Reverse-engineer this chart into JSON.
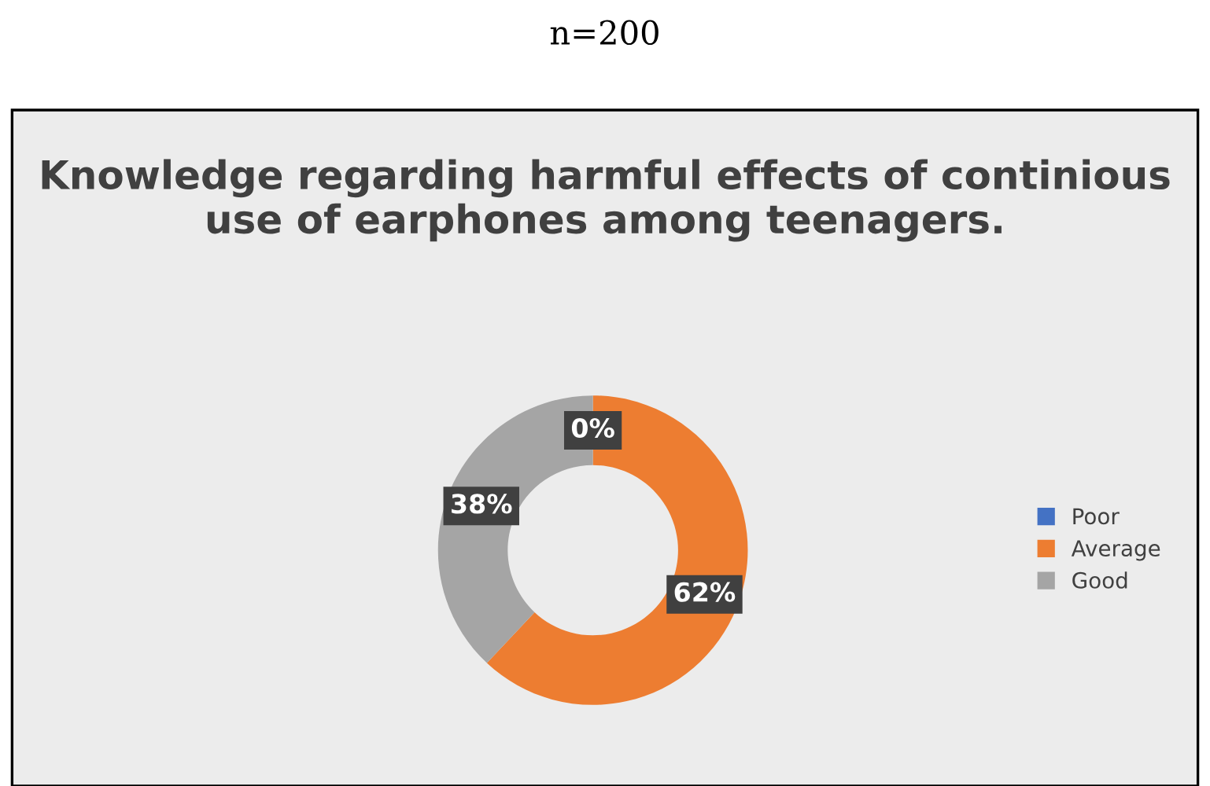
{
  "chart_data": {
    "type": "donut",
    "title": "Knowledge regarding harmful effects of continious use of earphones among teenagers.",
    "subtitle": "n=200",
    "categories": [
      "Poor",
      "Average",
      "Good"
    ],
    "values": [
      0,
      62,
      38
    ],
    "colors": [
      "#4472c4",
      "#ed7d31",
      "#a5a5a5"
    ],
    "value_labels": [
      "0%",
      "62%",
      "38%"
    ],
    "legend": "right"
  }
}
